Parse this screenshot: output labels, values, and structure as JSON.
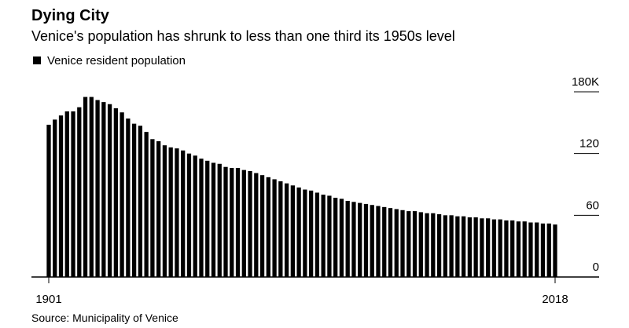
{
  "chart_data": {
    "type": "bar",
    "title": "Dying City",
    "subtitle": "Venice's population has shrunk to less than one third its 1950s level",
    "source": "Source: Municipality of Venice",
    "series": [
      {
        "name": "Venice resident population",
        "color": "#000000",
        "values": [
          148,
          153,
          157,
          161,
          161,
          165,
          175,
          175,
          172,
          170,
          168,
          164,
          160,
          154,
          149,
          147,
          141,
          134,
          132,
          128,
          126,
          125,
          123,
          120,
          118,
          115,
          113,
          111,
          110,
          107,
          106,
          106,
          104,
          103,
          101,
          99,
          97,
          95,
          93,
          91,
          89,
          87,
          85,
          84,
          82,
          80,
          79,
          77,
          76,
          74,
          73,
          72,
          71,
          70,
          69,
          68,
          67,
          66,
          65,
          64,
          64,
          63,
          62,
          62,
          61,
          60,
          60,
          59,
          59,
          58,
          58,
          57,
          57,
          56,
          56,
          55,
          55,
          54,
          54,
          53,
          53,
          52,
          52,
          51
        ]
      }
    ],
    "categories": [
      "1901",
      null,
      null,
      null,
      null,
      null,
      null,
      null,
      null,
      null,
      null,
      null,
      null,
      null,
      null,
      null,
      null,
      null,
      null,
      null,
      null,
      null,
      null,
      null,
      null,
      null,
      null,
      null,
      null,
      null,
      null,
      null,
      null,
      null,
      null,
      null,
      null,
      null,
      null,
      null,
      null,
      null,
      null,
      null,
      null,
      null,
      null,
      null,
      null,
      null,
      null,
      null,
      null,
      null,
      null,
      null,
      null,
      null,
      null,
      null,
      null,
      null,
      null,
      null,
      null,
      null,
      null,
      null,
      null,
      null,
      null,
      null,
      null,
      null,
      null,
      null,
      null,
      null,
      null,
      null,
      null,
      null,
      null,
      "2018"
    ],
    "ylim": [
      0,
      180
    ],
    "yticks": [
      0,
      60,
      120,
      {
        "value": 180,
        "label": "180K"
      }
    ]
  }
}
